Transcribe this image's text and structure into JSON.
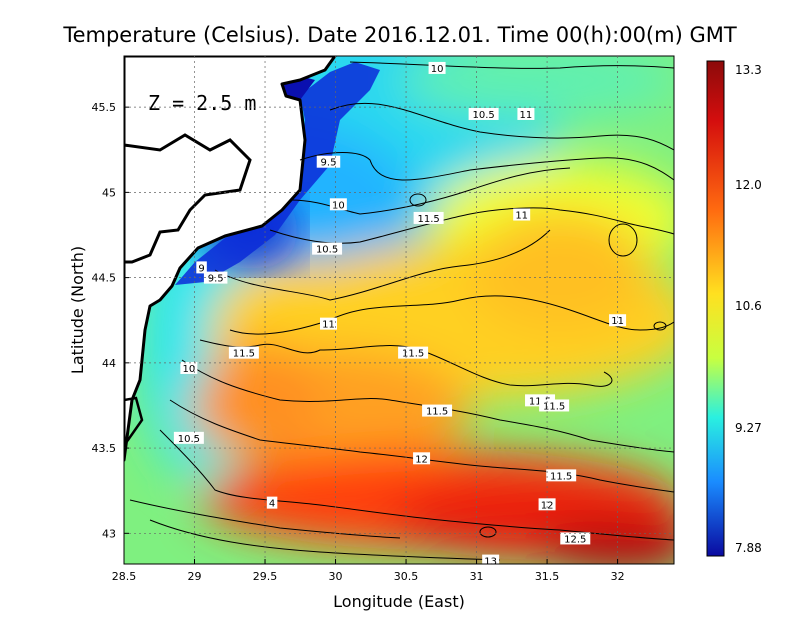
{
  "title": "Temperature (Celsius). Date 2016.12.01. Time 00(h):00(m)  GMT",
  "depth_label": "Z = 2.5 m",
  "xlabel": "Longitude (East)",
  "ylabel": "Latitude (North)",
  "xticks": [
    "28.5",
    "29",
    "29.5",
    "30",
    "30.5",
    "31",
    "31.5",
    "32"
  ],
  "yticks": [
    "43",
    "43.5",
    "44",
    "44.5",
    "45",
    "45.5"
  ],
  "colorbar_ticks": [
    "13.3",
    "12.0",
    "10.6",
    "9.27",
    "7.88"
  ],
  "contour_labels": [
    {
      "text": "10",
      "lon": 30.72,
      "lat": 45.73
    },
    {
      "text": "11",
      "lon": 31.35,
      "lat": 45.46
    },
    {
      "text": "10.5",
      "lon": 31.05,
      "lat": 45.46
    },
    {
      "text": "9.5",
      "lon": 29.95,
      "lat": 45.18
    },
    {
      "text": "10",
      "lon": 30.02,
      "lat": 44.93
    },
    {
      "text": "11",
      "lon": 31.32,
      "lat": 44.87
    },
    {
      "text": "11.5",
      "lon": 30.66,
      "lat": 44.85
    },
    {
      "text": "10.5",
      "lon": 29.94,
      "lat": 44.67
    },
    {
      "text": "9",
      "lon": 29.05,
      "lat": 44.56
    },
    {
      "text": "9.5",
      "lon": 29.15,
      "lat": 44.5
    },
    {
      "text": "11",
      "lon": 29.95,
      "lat": 44.23
    },
    {
      "text": "11",
      "lon": 32.0,
      "lat": 44.25
    },
    {
      "text": "11.5",
      "lon": 29.35,
      "lat": 44.06
    },
    {
      "text": "11.5",
      "lon": 30.55,
      "lat": 44.06
    },
    {
      "text": "10",
      "lon": 28.96,
      "lat": 43.97
    },
    {
      "text": "11.5",
      "lon": 31.45,
      "lat": 43.78
    },
    {
      "text": "11.5",
      "lon": 31.55,
      "lat": 43.75
    },
    {
      "text": "11.5",
      "lon": 30.72,
      "lat": 43.72
    },
    {
      "text": "10.5",
      "lon": 28.96,
      "lat": 43.56
    },
    {
      "text": "12",
      "lon": 30.61,
      "lat": 43.44
    },
    {
      "text": "11.5",
      "lon": 31.6,
      "lat": 43.34
    },
    {
      "text": "4",
      "lon": 29.55,
      "lat": 43.18
    },
    {
      "text": "12",
      "lon": 31.5,
      "lat": 43.17
    },
    {
      "text": "12.5",
      "lon": 31.7,
      "lat": 42.97
    },
    {
      "text": "13",
      "lon": 31.1,
      "lat": 42.84
    }
  ],
  "colors": {
    "cold": "#0a1a9a",
    "cool": "#1aa0ff",
    "mid": "#e6ff30",
    "warm": "#ff6a10",
    "hot": "#8c0a0a",
    "land": "#ffffff"
  }
}
